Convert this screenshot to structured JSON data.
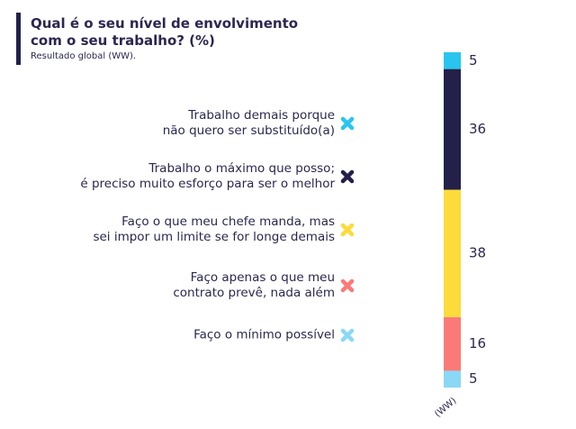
{
  "chart_data": {
    "type": "stacked_bar",
    "title": "Qual é o seu nível de envolvimento\ncom o seu trabalho? (%)",
    "subtitle": "Resultado global (WW).",
    "categories": [
      "(WW)"
    ],
    "ylim": [
      0,
      100
    ],
    "series": [
      {
        "name": "Trabalho demais porque\nnão quero ser substituído(a)",
        "color": "#29c5ee",
        "values": [
          5
        ]
      },
      {
        "name": "Trabalho o máximo que posso;\né preciso muito esforço para ser o melhor",
        "color": "#23204a",
        "values": [
          36
        ]
      },
      {
        "name": "Faço o que meu chefe manda, mas\nsei impor um limite se for longe demais",
        "color": "#fddb3a",
        "values": [
          38
        ]
      },
      {
        "name": "Faço apenas o que meu\ncontrato prevê, nada além",
        "color": "#fa7a78",
        "values": [
          16
        ]
      },
      {
        "name": "Faço o mínimo possível",
        "color": "#8ad8f6",
        "values": [
          5
        ]
      }
    ]
  }
}
